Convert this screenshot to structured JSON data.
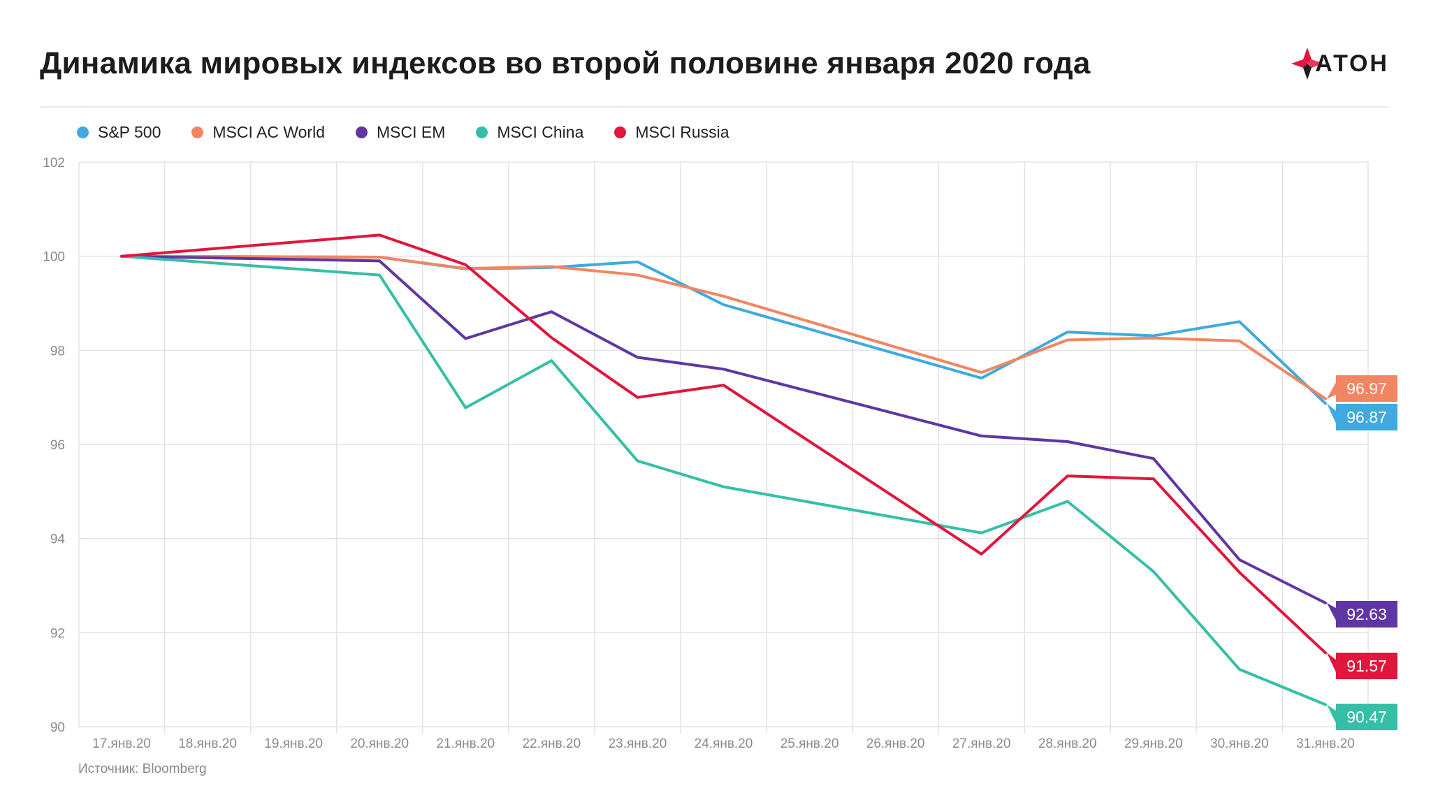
{
  "header": {
    "title": "Динамика мировых индексов во второй половине января 2020 года",
    "brand": "АТОН"
  },
  "footer": {
    "source": "Источник: Bloomberg"
  },
  "colors": {
    "brand_red": "#e1163c",
    "grid": "#e3e3e3",
    "axis_text": "#8a8a8a"
  },
  "chart_data": {
    "type": "line",
    "title": "Динамика мировых индексов во второй половине января 2020 года",
    "xlabel": "",
    "ylabel": "",
    "ylim": [
      90,
      102
    ],
    "yticks": [
      90,
      92,
      94,
      96,
      98,
      100,
      102
    ],
    "grid": true,
    "legend_position": "top-left",
    "categories": [
      "17.янв.20",
      "18.янв.20",
      "19.янв.20",
      "20.янв.20",
      "21.янв.20",
      "22.янв.20",
      "23.янв.20",
      "24.янв.20",
      "25.янв.20",
      "26.янв.20",
      "27.янв.20",
      "28.янв.20",
      "29.янв.20",
      "30.янв.20",
      "31.янв.20"
    ],
    "series": [
      {
        "name": "S&P 500",
        "color": "#3fa9e0",
        "points": [
          [
            0,
            100
          ],
          [
            3,
            99.98
          ],
          [
            4,
            99.73
          ],
          [
            5,
            99.76
          ],
          [
            6,
            99.88
          ],
          [
            7,
            98.97
          ],
          [
            10,
            97.41
          ],
          [
            11,
            98.39
          ],
          [
            12,
            98.31
          ],
          [
            13,
            98.61
          ],
          [
            14,
            96.87
          ]
        ],
        "end_label": "96.87"
      },
      {
        "name": "MSCI AC World",
        "color": "#f28562",
        "points": [
          [
            0,
            100
          ],
          [
            3,
            99.98
          ],
          [
            4,
            99.74
          ],
          [
            5,
            99.78
          ],
          [
            6,
            99.6
          ],
          [
            7,
            99.15
          ],
          [
            10,
            97.53
          ],
          [
            11,
            98.22
          ],
          [
            12,
            98.26
          ],
          [
            13,
            98.2
          ],
          [
            14,
            96.97
          ]
        ],
        "end_label": "96.97"
      },
      {
        "name": "MSCI EM",
        "color": "#5f36a3",
        "points": [
          [
            0,
            100
          ],
          [
            3,
            99.9
          ],
          [
            4,
            98.25
          ],
          [
            5,
            98.82
          ],
          [
            6,
            97.85
          ],
          [
            7,
            97.6
          ],
          [
            10,
            96.18
          ],
          [
            11,
            96.06
          ],
          [
            12,
            95.7
          ],
          [
            13,
            93.55
          ],
          [
            14,
            92.63
          ]
        ],
        "end_label": "92.63"
      },
      {
        "name": "MSCI China",
        "color": "#36bfa7",
        "points": [
          [
            0,
            100
          ],
          [
            3,
            99.6
          ],
          [
            4,
            96.78
          ],
          [
            5,
            97.78
          ],
          [
            6,
            95.65
          ],
          [
            7,
            95.1
          ],
          [
            10,
            94.12
          ],
          [
            11,
            94.79
          ],
          [
            12,
            93.3
          ],
          [
            13,
            91.22
          ],
          [
            14,
            90.47
          ]
        ],
        "end_label": "90.47"
      },
      {
        "name": "MSCI Russia",
        "color": "#e1163c",
        "points": [
          [
            0,
            100
          ],
          [
            3,
            100.45
          ],
          [
            4,
            99.82
          ],
          [
            5,
            98.27
          ],
          [
            6,
            97.0
          ],
          [
            7,
            97.26
          ],
          [
            10,
            93.67
          ],
          [
            11,
            95.33
          ],
          [
            12,
            95.27
          ],
          [
            13,
            93.28
          ],
          [
            14,
            91.57
          ]
        ],
        "end_label": "91.57"
      }
    ]
  }
}
